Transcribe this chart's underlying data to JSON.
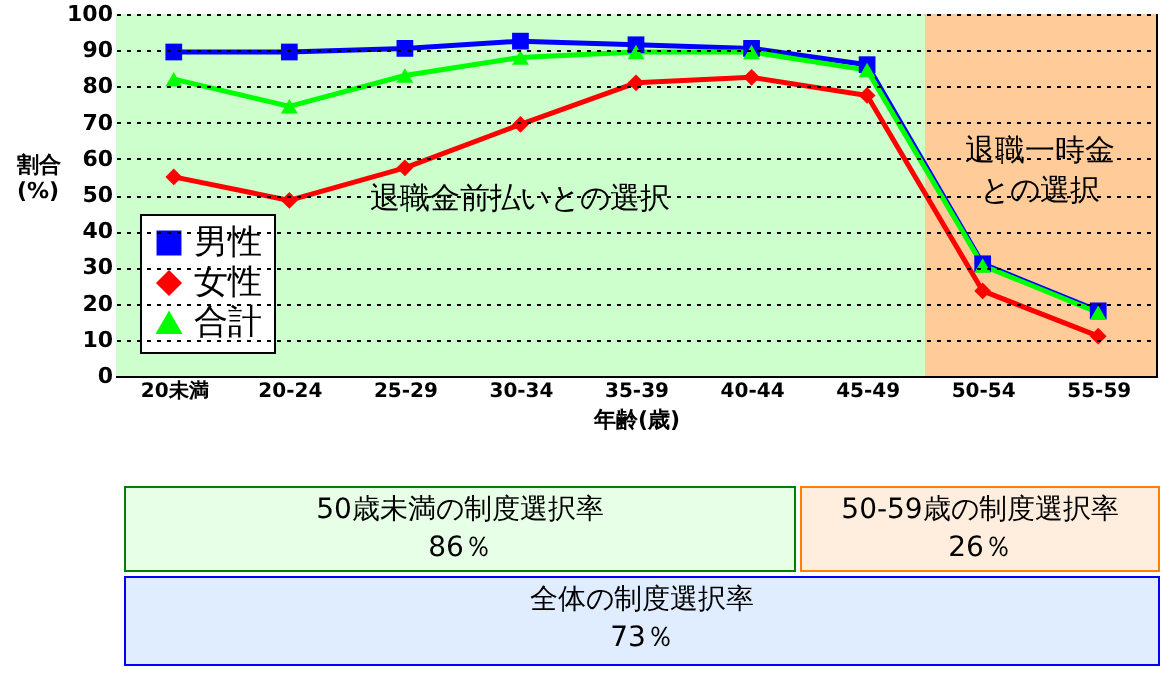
{
  "chart_data": {
    "type": "line",
    "xlabel": "年齢(歳)",
    "ylabel": "割合(%)",
    "categories": [
      "20未満",
      "20-24",
      "25-29",
      "30-34",
      "35-39",
      "40-44",
      "45-49",
      "50-54",
      "55-59"
    ],
    "series": [
      {
        "name": "男性",
        "color": "#0000ff",
        "marker": "square",
        "values": [
          89.5,
          89.5,
          90.5,
          92.5,
          91.5,
          90.5,
          86,
          31,
          18
        ]
      },
      {
        "name": "女性",
        "color": "#ff0000",
        "marker": "diamond",
        "values": [
          55,
          48.5,
          57.5,
          69.5,
          81,
          82.5,
          77.5,
          23.5,
          11
        ]
      },
      {
        "name": "合計",
        "color": "#00ff00",
        "marker": "triangle",
        "values": [
          82,
          74.5,
          83,
          88,
          89.5,
          89.5,
          84.5,
          30.5,
          17.5
        ]
      }
    ],
    "ylim": [
      0,
      100
    ],
    "yticks": [
      0,
      10,
      20,
      30,
      40,
      50,
      60,
      70,
      80,
      90,
      100
    ],
    "grid": "y",
    "legend": "bottom left",
    "line_style": "solid",
    "bands": [
      {
        "axis": "x",
        "from": "20未満",
        "to": "45-49",
        "label": "退職金前払いとの選択",
        "color": "#ccffcc"
      },
      {
        "axis": "x",
        "from": "50-54",
        "to": "55-59",
        "label": "退職一時金との選択",
        "color": "#ffcc99"
      }
    ],
    "annotations": [
      "50歳未満の制度選択率\n86％",
      "50-59歳の制度選択率\n26％",
      "全体の制度選択率\n73％"
    ]
  }
}
